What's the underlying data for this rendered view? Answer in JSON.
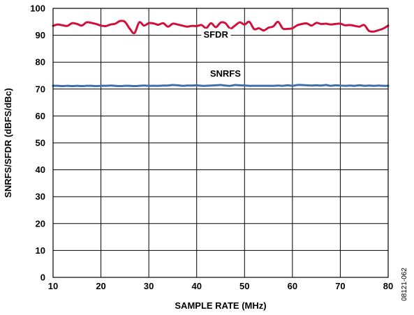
{
  "chart_data": {
    "type": "line",
    "title": "",
    "xlabel": "SAMPLE RATE (MHz)",
    "ylabel": "SNRFS/SFDR (dBFS/dBc)",
    "xlim": [
      10,
      80
    ],
    "ylim": [
      0,
      100
    ],
    "x_ticks": [
      "10",
      "20",
      "30",
      "40",
      "50",
      "60",
      "70",
      "80"
    ],
    "y_ticks": [
      "0",
      "10",
      "20",
      "30",
      "40",
      "50",
      "60",
      "70",
      "80",
      "90",
      "100"
    ],
    "grid": true,
    "legend": "none",
    "figure_id": "08121-062",
    "series": [
      {
        "name": "SFDR",
        "color": "#d0103a",
        "x": [
          10,
          11,
          12,
          13,
          14,
          15,
          16,
          17,
          18,
          19,
          20,
          21,
          22,
          23,
          24,
          25,
          26,
          27,
          28,
          29,
          30,
          31,
          32,
          33,
          34,
          35,
          36,
          37,
          38,
          39,
          40,
          41,
          42,
          43,
          44,
          45,
          46,
          47,
          48,
          49,
          50,
          51,
          52,
          53,
          54,
          55,
          56,
          57,
          58,
          59,
          60,
          61,
          62,
          63,
          64,
          65,
          66,
          67,
          68,
          69,
          70,
          71,
          72,
          73,
          74,
          75,
          76,
          77,
          78,
          79,
          80
        ],
        "values": [
          93.5,
          94.0,
          93.7,
          93.5,
          94.5,
          94.2,
          93.6,
          94.8,
          94.6,
          94.2,
          93.6,
          93.4,
          94.0,
          94.3,
          95.3,
          95.0,
          92.5,
          90.8,
          94.8,
          93.6,
          94.5,
          94.4,
          93.9,
          94.5,
          93.2,
          94.3,
          94.0,
          93.6,
          93.2,
          93.5,
          93.4,
          93.8,
          92.7,
          94.5,
          93.0,
          94.7,
          94.5,
          92.5,
          93.6,
          94.8,
          94.0,
          95.0,
          92.3,
          92.6,
          91.8,
          92.8,
          93.3,
          95.0,
          92.5,
          92.4,
          92.6,
          93.7,
          94.2,
          94.4,
          93.6,
          94.6,
          94.2,
          94.3,
          94.0,
          94.2,
          94.3,
          93.7,
          93.8,
          93.5,
          93.2,
          93.8,
          91.6,
          91.4,
          91.9,
          92.5,
          93.6
        ]
      },
      {
        "name": "SNRFS",
        "color": "#3e6fa8",
        "x": [
          10,
          11,
          12,
          13,
          14,
          15,
          16,
          17,
          18,
          19,
          20,
          21,
          22,
          23,
          24,
          25,
          26,
          27,
          28,
          29,
          30,
          31,
          32,
          33,
          34,
          35,
          36,
          37,
          38,
          39,
          40,
          41,
          42,
          43,
          44,
          45,
          46,
          47,
          48,
          49,
          50,
          51,
          52,
          53,
          54,
          55,
          56,
          57,
          58,
          59,
          60,
          61,
          62,
          63,
          64,
          65,
          66,
          67,
          68,
          69,
          70,
          71,
          72,
          73,
          74,
          75,
          76,
          77,
          78,
          79,
          80
        ],
        "values": [
          71.2,
          71.2,
          71.1,
          71.2,
          71.1,
          71.2,
          71.1,
          71.2,
          71.2,
          71.1,
          71.2,
          71.2,
          71.3,
          71.2,
          71.1,
          71.2,
          71.2,
          71.1,
          71.2,
          71.3,
          71.2,
          71.2,
          71.2,
          71.3,
          71.3,
          71.5,
          71.4,
          71.2,
          71.3,
          71.3,
          71.4,
          71.2,
          71.2,
          71.3,
          71.4,
          71.5,
          71.3,
          71.2,
          71.5,
          71.4,
          71.3,
          71.2,
          71.2,
          71.2,
          71.2,
          71.2,
          71.2,
          71.3,
          71.2,
          71.4,
          71.2,
          71.5,
          71.5,
          71.4,
          71.3,
          71.4,
          71.3,
          71.5,
          71.2,
          71.4,
          71.3,
          71.2,
          71.3,
          71.2,
          71.4,
          71.2,
          71.3,
          71.2,
          71.3,
          71.2,
          71.2
        ]
      }
    ],
    "annotations": [
      {
        "text": "SFDR",
        "series": "SFDR"
      },
      {
        "text": "SNRFS",
        "series": "SNRFS"
      }
    ]
  }
}
